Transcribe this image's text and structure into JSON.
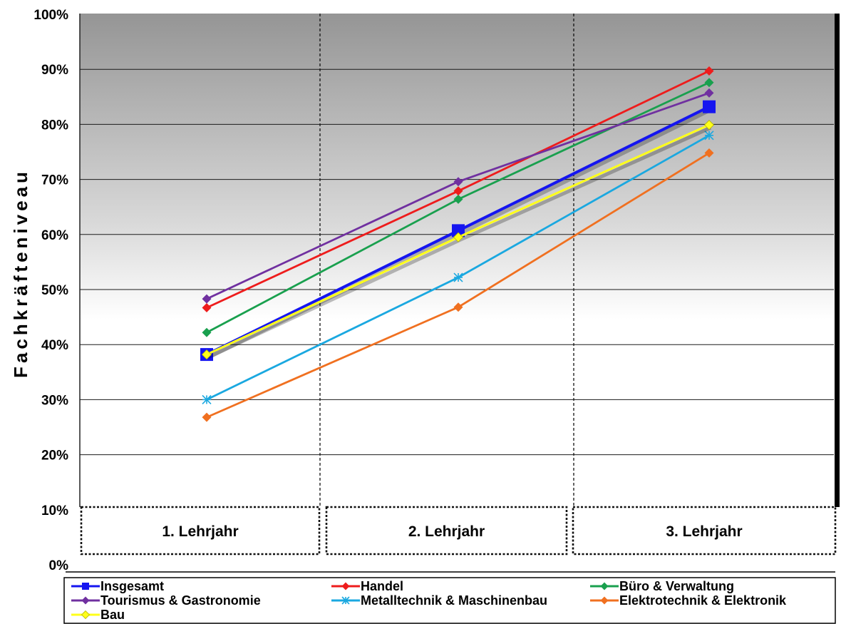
{
  "chart_data": {
    "type": "line",
    "ylabel": "Fachkräfteniveau",
    "xlabel": "",
    "categories": [
      "1. Lehrjahr",
      "2. Lehrjahr",
      "3. Lehrjahr"
    ],
    "ylim": [
      0,
      100
    ],
    "y_ticks": [
      "0%",
      "10%",
      "20%",
      "30%",
      "40%",
      "50%",
      "60%",
      "70%",
      "80%",
      "90%",
      "100%"
    ],
    "grid": true,
    "legend_position": "bottom",
    "series": [
      {
        "name": "Insgesamt",
        "values": [
          38.2,
          60.7,
          83.2
        ],
        "color": "#1515f0",
        "marker": "square"
      },
      {
        "name": "Handel",
        "values": [
          46.7,
          67.9,
          89.7
        ],
        "color": "#ee1c1c",
        "marker": "diamond"
      },
      {
        "name": "Büro & Verwaltung",
        "values": [
          42.2,
          66.4,
          87.6
        ],
        "color": "#19a04e",
        "marker": "diamond"
      },
      {
        "name": "Tourismus & Gastronomie",
        "values": [
          48.3,
          69.6,
          85.7
        ],
        "color": "#7030a0",
        "marker": "diamond"
      },
      {
        "name": "Metalltechnik & Maschinenbau",
        "values": [
          30.0,
          52.2,
          78.0
        ],
        "color": "#1aa8e0",
        "marker": "asterisk"
      },
      {
        "name": "Elektrotechnik & Elektronik",
        "values": [
          26.8,
          46.8,
          74.8
        ],
        "color": "#f07020",
        "marker": "diamond"
      },
      {
        "name": "Bau",
        "values": [
          38.2,
          59.5,
          79.9
        ],
        "color": "#ffff1a",
        "marker": "diamond"
      }
    ]
  }
}
